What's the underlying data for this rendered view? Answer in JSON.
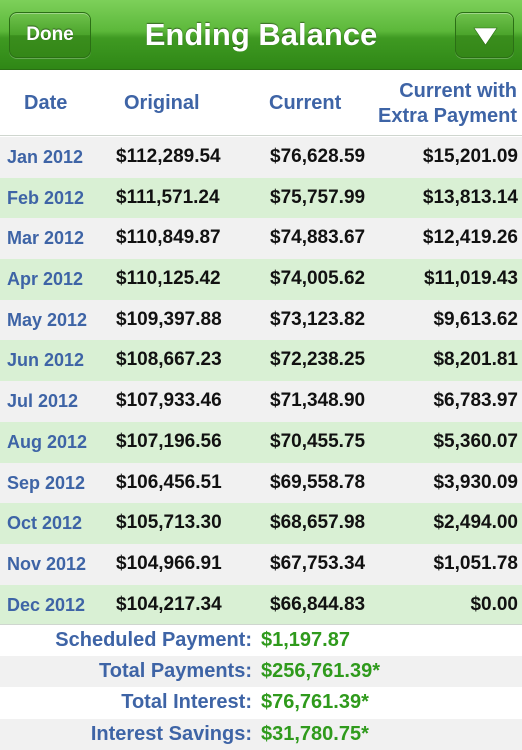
{
  "navbar": {
    "title": "Ending Balance",
    "done_label": "Done",
    "menu_icon": "triangle-down-icon"
  },
  "table": {
    "headers": {
      "date": "Date",
      "original": "Original",
      "current": "Current",
      "extra_line1": "Current with",
      "extra_line2": "Extra Payment"
    },
    "rows": [
      {
        "date": "Jan 2012",
        "original": "$112,289.54",
        "current": "$76,628.59",
        "extra": "$15,201.09"
      },
      {
        "date": "Feb 2012",
        "original": "$111,571.24",
        "current": "$75,757.99",
        "extra": "$13,813.14"
      },
      {
        "date": "Mar 2012",
        "original": "$110,849.87",
        "current": "$74,883.67",
        "extra": "$12,419.26"
      },
      {
        "date": "Apr 2012",
        "original": "$110,125.42",
        "current": "$74,005.62",
        "extra": "$11,019.43"
      },
      {
        "date": "May 2012",
        "original": "$109,397.88",
        "current": "$73,123.82",
        "extra": "$9,613.62"
      },
      {
        "date": "Jun 2012",
        "original": "$108,667.23",
        "current": "$72,238.25",
        "extra": "$8,201.81"
      },
      {
        "date": "Jul 2012",
        "original": "$107,933.46",
        "current": "$71,348.90",
        "extra": "$6,783.97"
      },
      {
        "date": "Aug 2012",
        "original": "$107,196.56",
        "current": "$70,455.75",
        "extra": "$5,360.07"
      },
      {
        "date": "Sep 2012",
        "original": "$106,456.51",
        "current": "$69,558.78",
        "extra": "$3,930.09"
      },
      {
        "date": "Oct 2012",
        "original": "$105,713.30",
        "current": "$68,657.98",
        "extra": "$2,494.00"
      },
      {
        "date": "Nov 2012",
        "original": "$104,966.91",
        "current": "$67,753.34",
        "extra": "$1,051.78"
      },
      {
        "date": "Dec 2012",
        "original": "$104,217.34",
        "current": "$66,844.83",
        "extra": "$0.00"
      }
    ]
  },
  "summary": [
    {
      "label": "Scheduled Payment:",
      "value": "$1,197.87"
    },
    {
      "label": "Total Payments:",
      "value": "$256,761.39*"
    },
    {
      "label": "Total Interest:",
      "value": "$76,761.39*"
    },
    {
      "label": "Interest Savings:",
      "value": "$31,780.75*"
    }
  ],
  "colors": {
    "nav_green": "#4ba42b",
    "header_text": "#3e64a6",
    "row_alt": "#d9f0d4",
    "value_green": "#2f9a1c"
  }
}
